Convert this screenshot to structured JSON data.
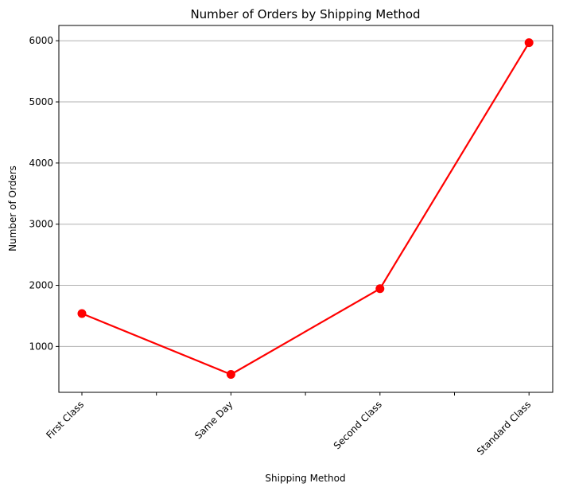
{
  "chart_data": {
    "type": "line",
    "title": "Number of Orders by Shipping Method",
    "xlabel": "Shipping Method",
    "ylabel": "Number of Orders",
    "categories": [
      "First Class",
      "Same Day",
      "Second Class",
      "Standard Class"
    ],
    "series": [
      {
        "values": [
          1538,
          543,
          1945,
          5968
        ],
        "color": "#ff0000",
        "marker": "circle"
      }
    ],
    "ylim": [
      250,
      6250
    ],
    "yticks": [
      1000,
      2000,
      3000,
      4000,
      5000,
      6000
    ],
    "grid": "y-axis",
    "x_tick_rotation": -45,
    "legend": "none"
  }
}
